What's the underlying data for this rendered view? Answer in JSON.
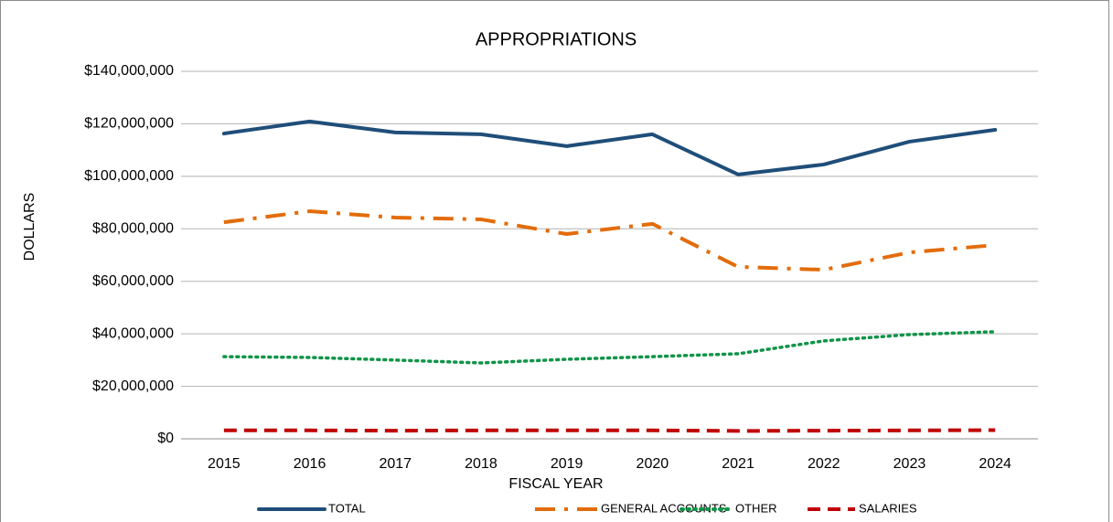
{
  "chart_data": {
    "type": "line",
    "title": "APPROPRIATIONS",
    "x_label": "FISCAL YEAR",
    "y_label": "DOLLARS",
    "categories": [
      "2015",
      "2016",
      "2017",
      "2018",
      "2019",
      "2020",
      "2021",
      "2022",
      "2023",
      "2024"
    ],
    "series": [
      {
        "name": "TOTAL",
        "color": "#1f4e79",
        "style": "solid",
        "values": [
          116300000,
          120900000,
          116700000,
          116000000,
          111500000,
          116000000,
          100700000,
          104500000,
          113200000,
          117700000
        ]
      },
      {
        "name": "GENERAL ACCOUNTS",
        "color": "#e36c0a",
        "style": "dashdot",
        "values": [
          82500000,
          86700000,
          84300000,
          83600000,
          78000000,
          81900000,
          65500000,
          64400000,
          71000000,
          73800000
        ]
      },
      {
        "name": "OTHER",
        "color": "#0f9447",
        "style": "dotted",
        "values": [
          31300000,
          31000000,
          30000000,
          28900000,
          30300000,
          31300000,
          32400000,
          37300000,
          39700000,
          40800000
        ]
      },
      {
        "name": "SALARIES",
        "color": "#c00000",
        "style": "dashed",
        "values": [
          3200000,
          3200000,
          3100000,
          3200000,
          3200000,
          3200000,
          3000000,
          3100000,
          3200000,
          3300000
        ]
      }
    ],
    "ylim": [
      0,
      140000000
    ],
    "yticks": [
      {
        "value": 0,
        "label": "$0"
      },
      {
        "value": 20000000,
        "label": "$20,000,000"
      },
      {
        "value": 40000000,
        "label": "$40,000,000"
      },
      {
        "value": 60000000,
        "label": "$60,000,000"
      },
      {
        "value": 80000000,
        "label": "$80,000,000"
      },
      {
        "value": 100000000,
        "label": "$100,000,000"
      },
      {
        "value": 120000000,
        "label": "$120,000,000"
      },
      {
        "value": 140000000,
        "label": "$140,000,000"
      }
    ],
    "grid": true,
    "legend": "bottom"
  }
}
